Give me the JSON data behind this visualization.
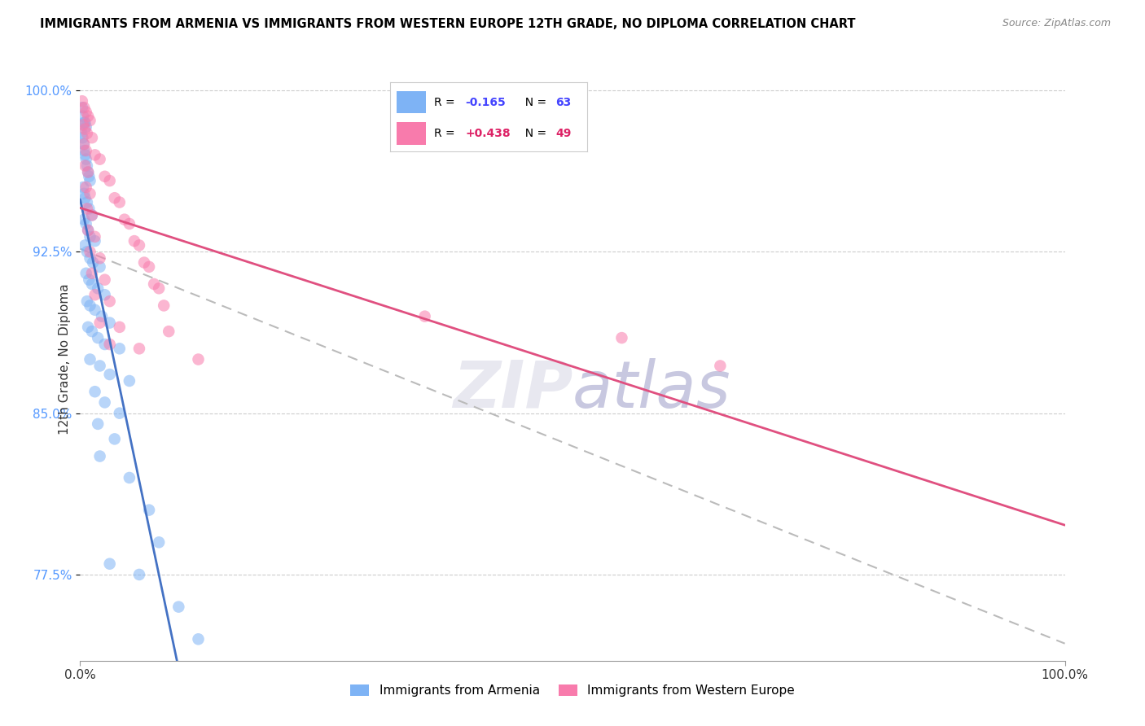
{
  "title": "IMMIGRANTS FROM ARMENIA VS IMMIGRANTS FROM WESTERN EUROPE 12TH GRADE, NO DIPLOMA CORRELATION CHART",
  "source": "Source: ZipAtlas.com",
  "ylabel_label": "12th Grade, No Diploma",
  "legend_label_blue": "Immigrants from Armenia",
  "legend_label_pink": "Immigrants from Western Europe",
  "R_blue": -0.165,
  "N_blue": 63,
  "R_pink": 0.438,
  "N_pink": 49,
  "blue_color": "#7EB3F5",
  "pink_color": "#F87BAC",
  "xlim": [
    0,
    100
  ],
  "ylim": [
    73.5,
    101.5
  ],
  "yticks": [
    77.5,
    85.0,
    92.5,
    100.0
  ],
  "xticks": [
    0,
    100
  ],
  "blue_scatter": [
    [
      0.2,
      99.2
    ],
    [
      0.3,
      98.8
    ],
    [
      0.4,
      98.5
    ],
    [
      0.5,
      98.5
    ],
    [
      0.6,
      98.3
    ],
    [
      0.15,
      98.0
    ],
    [
      0.25,
      97.8
    ],
    [
      0.35,
      97.5
    ],
    [
      0.4,
      97.2
    ],
    [
      0.5,
      97.0
    ],
    [
      0.6,
      96.8
    ],
    [
      0.7,
      96.5
    ],
    [
      0.8,
      96.2
    ],
    [
      0.9,
      96.0
    ],
    [
      1.0,
      95.8
    ],
    [
      0.3,
      95.5
    ],
    [
      0.4,
      95.2
    ],
    [
      0.5,
      95.0
    ],
    [
      0.7,
      94.8
    ],
    [
      0.9,
      94.5
    ],
    [
      1.2,
      94.2
    ],
    [
      0.4,
      94.0
    ],
    [
      0.6,
      93.8
    ],
    [
      0.8,
      93.5
    ],
    [
      1.0,
      93.2
    ],
    [
      1.5,
      93.0
    ],
    [
      0.5,
      92.8
    ],
    [
      0.7,
      92.5
    ],
    [
      1.0,
      92.2
    ],
    [
      1.3,
      92.0
    ],
    [
      2.0,
      91.8
    ],
    [
      0.6,
      91.5
    ],
    [
      0.9,
      91.2
    ],
    [
      1.2,
      91.0
    ],
    [
      1.8,
      90.8
    ],
    [
      2.5,
      90.5
    ],
    [
      0.7,
      90.2
    ],
    [
      1.0,
      90.0
    ],
    [
      1.5,
      89.8
    ],
    [
      2.2,
      89.5
    ],
    [
      3.0,
      89.2
    ],
    [
      0.8,
      89.0
    ],
    [
      1.2,
      88.8
    ],
    [
      1.8,
      88.5
    ],
    [
      2.5,
      88.2
    ],
    [
      4.0,
      88.0
    ],
    [
      1.0,
      87.5
    ],
    [
      2.0,
      87.2
    ],
    [
      3.0,
      86.8
    ],
    [
      5.0,
      86.5
    ],
    [
      1.5,
      86.0
    ],
    [
      2.5,
      85.5
    ],
    [
      4.0,
      85.0
    ],
    [
      1.8,
      84.5
    ],
    [
      3.5,
      83.8
    ],
    [
      2.0,
      83.0
    ],
    [
      5.0,
      82.0
    ],
    [
      7.0,
      80.5
    ],
    [
      8.0,
      79.0
    ],
    [
      6.0,
      77.5
    ],
    [
      10.0,
      76.0
    ],
    [
      12.0,
      74.5
    ],
    [
      3.0,
      78.0
    ]
  ],
  "pink_scatter": [
    [
      0.2,
      99.5
    ],
    [
      0.4,
      99.2
    ],
    [
      0.6,
      99.0
    ],
    [
      0.8,
      98.8
    ],
    [
      1.0,
      98.6
    ],
    [
      0.3,
      98.4
    ],
    [
      0.5,
      98.2
    ],
    [
      0.7,
      98.0
    ],
    [
      1.2,
      97.8
    ],
    [
      0.4,
      97.5
    ],
    [
      0.6,
      97.2
    ],
    [
      1.5,
      97.0
    ],
    [
      2.0,
      96.8
    ],
    [
      0.5,
      96.5
    ],
    [
      0.8,
      96.2
    ],
    [
      2.5,
      96.0
    ],
    [
      3.0,
      95.8
    ],
    [
      0.6,
      95.5
    ],
    [
      1.0,
      95.2
    ],
    [
      3.5,
      95.0
    ],
    [
      4.0,
      94.8
    ],
    [
      0.7,
      94.5
    ],
    [
      1.2,
      94.2
    ],
    [
      4.5,
      94.0
    ],
    [
      5.0,
      93.8
    ],
    [
      0.8,
      93.5
    ],
    [
      1.5,
      93.2
    ],
    [
      5.5,
      93.0
    ],
    [
      6.0,
      92.8
    ],
    [
      1.0,
      92.5
    ],
    [
      2.0,
      92.2
    ],
    [
      6.5,
      92.0
    ],
    [
      7.0,
      91.8
    ],
    [
      1.2,
      91.5
    ],
    [
      2.5,
      91.2
    ],
    [
      7.5,
      91.0
    ],
    [
      8.0,
      90.8
    ],
    [
      1.5,
      90.5
    ],
    [
      3.0,
      90.2
    ],
    [
      8.5,
      90.0
    ],
    [
      35.0,
      89.5
    ],
    [
      2.0,
      89.2
    ],
    [
      4.0,
      89.0
    ],
    [
      9.0,
      88.8
    ],
    [
      55.0,
      88.5
    ],
    [
      3.0,
      88.2
    ],
    [
      6.0,
      88.0
    ],
    [
      12.0,
      87.5
    ],
    [
      65.0,
      87.2
    ]
  ]
}
